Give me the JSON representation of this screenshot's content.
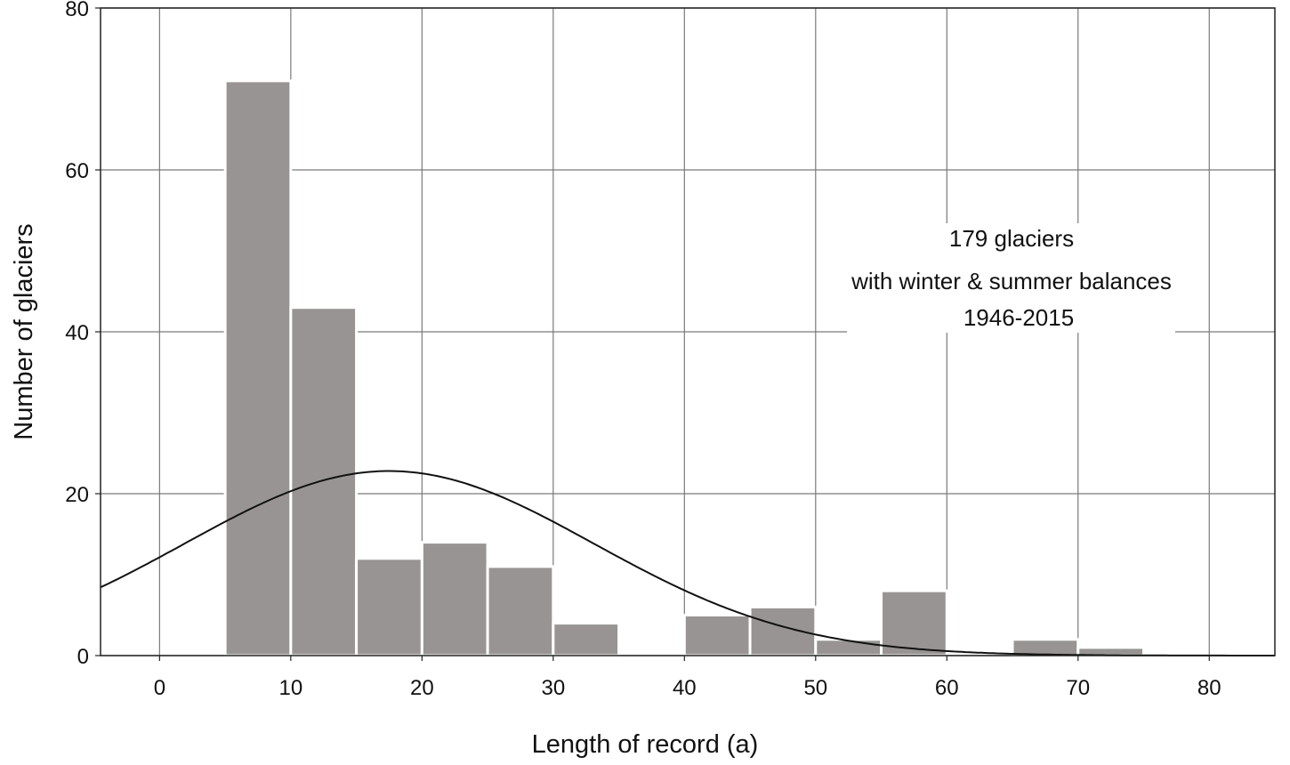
{
  "chart_data": {
    "type": "bar",
    "xlabel": "Length of record (a)",
    "ylabel": "Number of glaciers",
    "xlim": [
      -4.5,
      85
    ],
    "ylim": [
      0,
      80
    ],
    "xticks": [
      "0",
      "10",
      "20",
      "30",
      "40",
      "50",
      "60",
      "70",
      "80"
    ],
    "yticks": [
      "0",
      "20",
      "40",
      "60",
      "80"
    ],
    "grid": true,
    "bin_width": 5,
    "bins": [
      {
        "x0": 5,
        "x1": 10,
        "value": 71
      },
      {
        "x0": 10,
        "x1": 15,
        "value": 43
      },
      {
        "x0": 15,
        "x1": 20,
        "value": 12
      },
      {
        "x0": 20,
        "x1": 25,
        "value": 14
      },
      {
        "x0": 25,
        "x1": 30,
        "value": 11
      },
      {
        "x0": 30,
        "x1": 35,
        "value": 4
      },
      {
        "x0": 35,
        "x1": 40,
        "value": 0
      },
      {
        "x0": 40,
        "x1": 45,
        "value": 5
      },
      {
        "x0": 45,
        "x1": 50,
        "value": 6
      },
      {
        "x0": 50,
        "x1": 55,
        "value": 2
      },
      {
        "x0": 55,
        "x1": 60,
        "value": 8
      },
      {
        "x0": 60,
        "x1": 65,
        "value": 0
      },
      {
        "x0": 65,
        "x1": 70,
        "value": 2
      },
      {
        "x0": 70,
        "x1": 75,
        "value": 1
      }
    ],
    "normal_curve": {
      "mean": 17.5,
      "sd": 15.6,
      "peak": 22.8
    },
    "colors": {
      "bar": "#979493",
      "bar_edge": "#ffffff",
      "grid": "#7a7a7a",
      "curve": "#111111"
    },
    "annotation": [
      "179 glaciers",
      "with winter & summer balances",
      "1946-2015"
    ]
  }
}
